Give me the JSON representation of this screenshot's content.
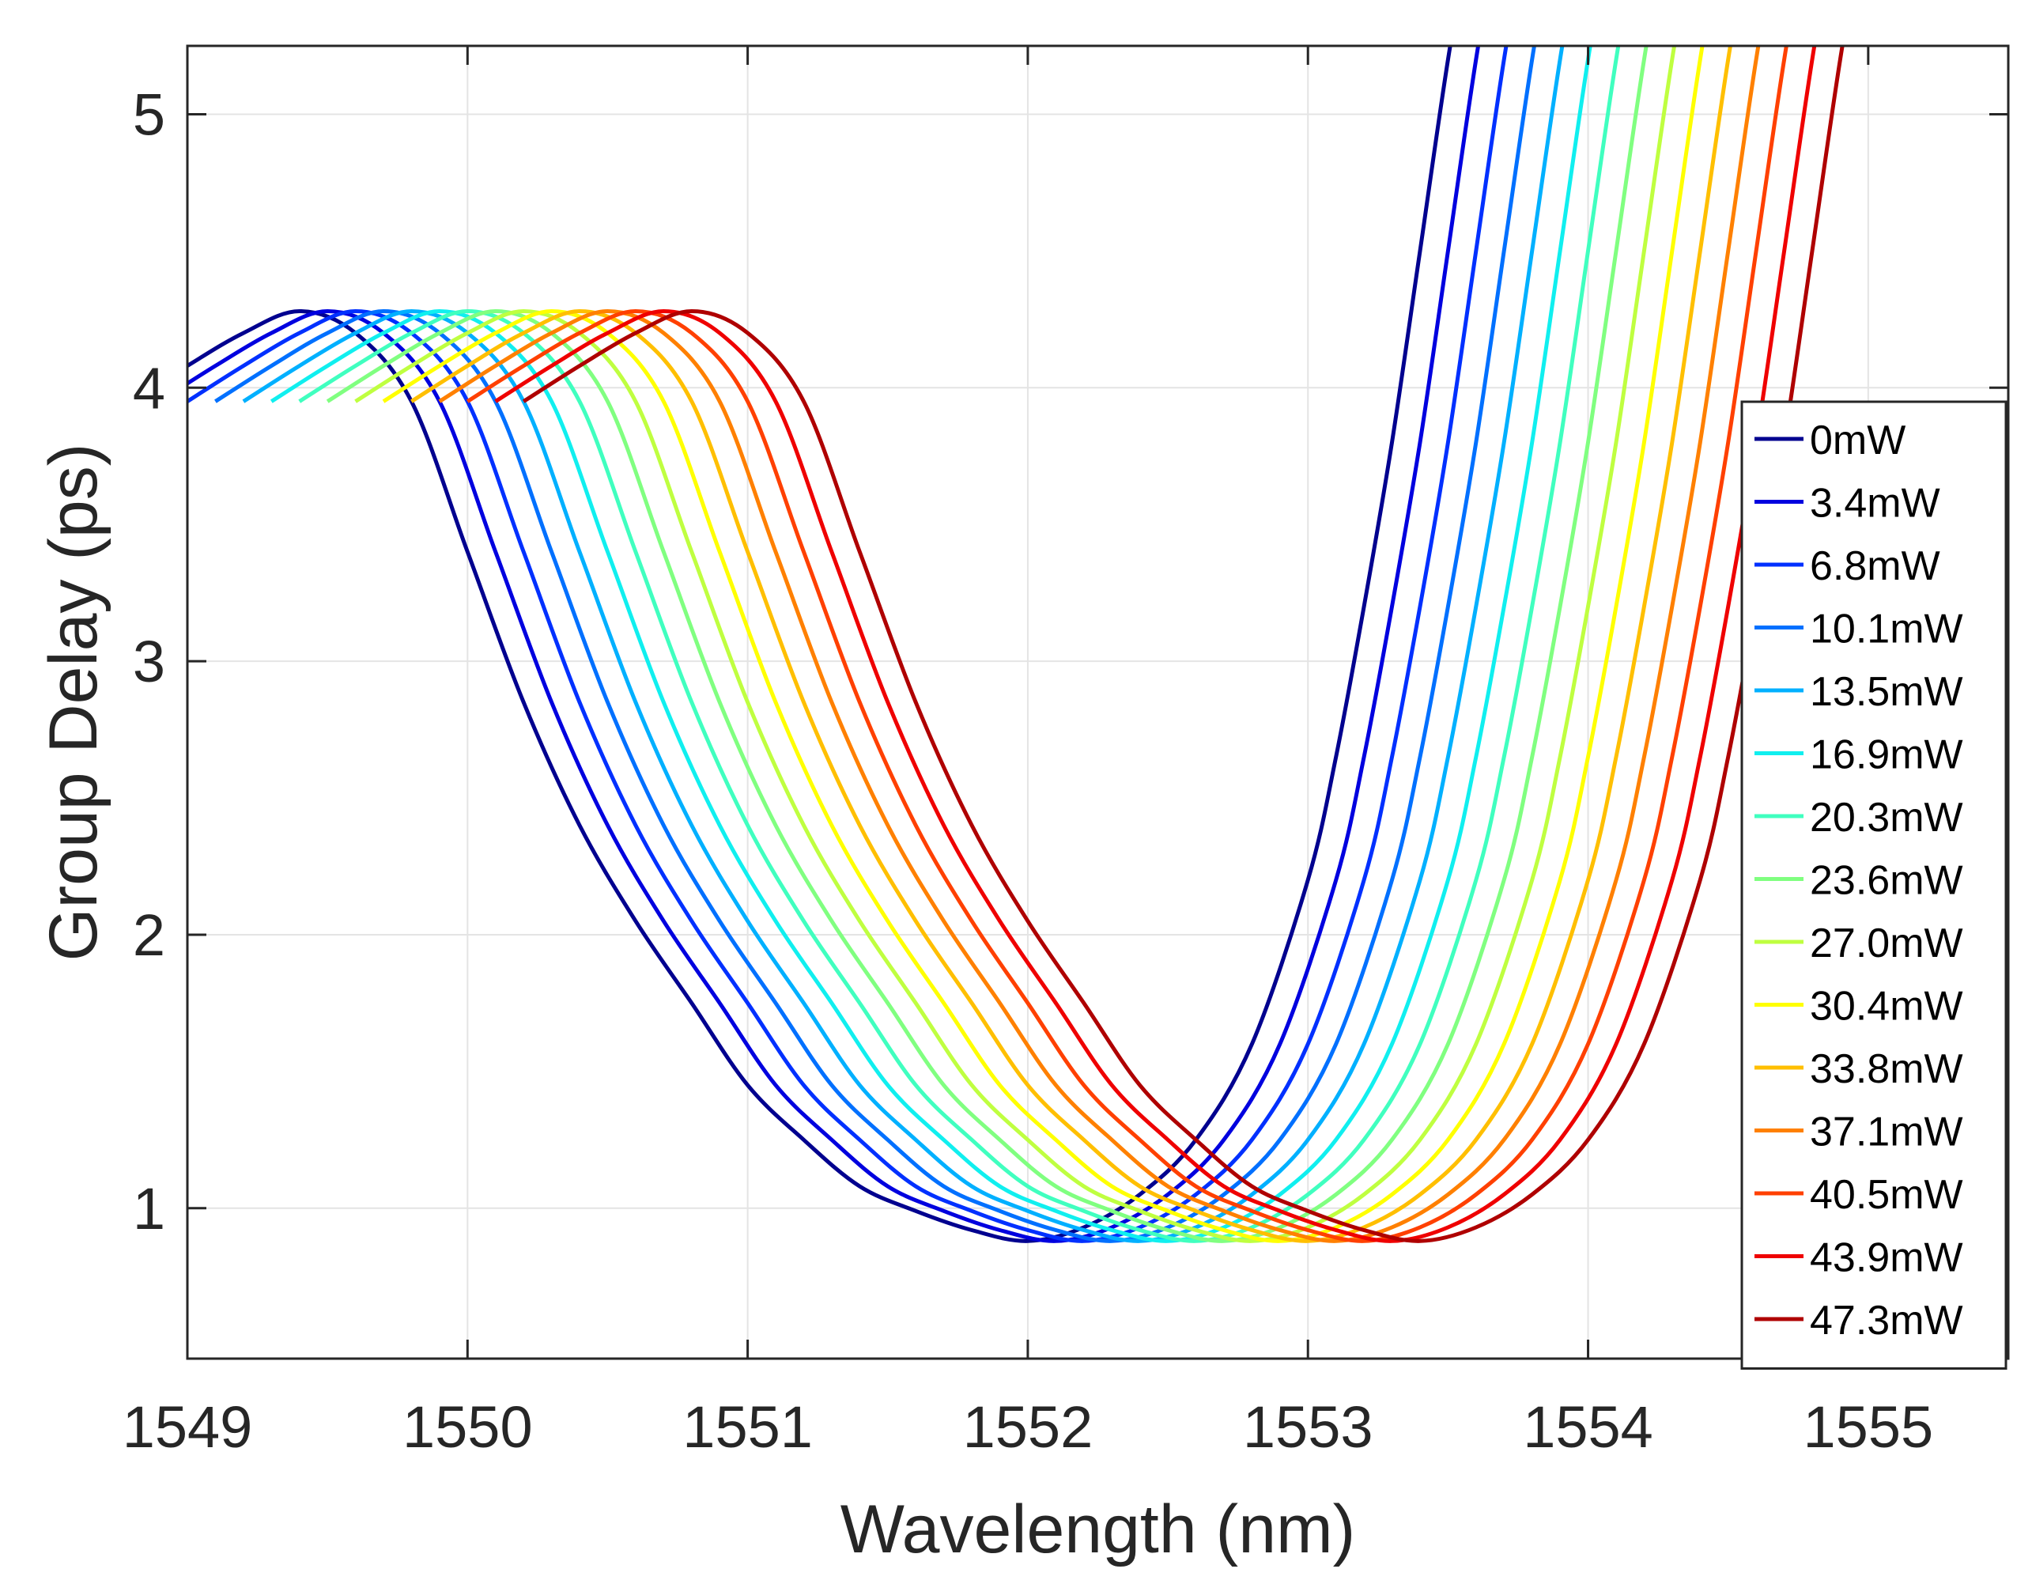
{
  "chart_data": {
    "type": "line",
    "title": "",
    "xlabel": "Wavelength (nm)",
    "ylabel": "Group Delay (ps)",
    "xlim": [
      1549,
      1555.5
    ],
    "ylim": [
      0.45,
      5.25
    ],
    "x_ticks": [
      1549,
      1550,
      1551,
      1552,
      1553,
      1554,
      1555
    ],
    "y_ticks": [
      1,
      2,
      3,
      4,
      5
    ],
    "grid": true,
    "legend_position": "right",
    "series": [
      {
        "name": "0mW",
        "color": "#00008F",
        "shift": 0.0
      },
      {
        "name": "3.4mW",
        "color": "#0000DF",
        "shift": 0.1
      },
      {
        "name": "6.8mW",
        "color": "#0030FF",
        "shift": 0.2
      },
      {
        "name": "10.1mW",
        "color": "#0070FF",
        "shift": 0.3
      },
      {
        "name": "13.5mW",
        "color": "#00B0FF",
        "shift": 0.4
      },
      {
        "name": "16.9mW",
        "color": "#10EFEF",
        "shift": 0.5
      },
      {
        "name": "20.3mW",
        "color": "#40FFBF",
        "shift": 0.6
      },
      {
        "name": "23.6mW",
        "color": "#80FF80",
        "shift": 0.7
      },
      {
        "name": "27.0mW",
        "color": "#BFFF40",
        "shift": 0.8
      },
      {
        "name": "30.4mW",
        "color": "#FFFF00",
        "shift": 0.9
      },
      {
        "name": "33.8mW",
        "color": "#FFBF00",
        "shift": 1.0
      },
      {
        "name": "37.1mW",
        "color": "#FF8000",
        "shift": 1.1
      },
      {
        "name": "40.5mW",
        "color": "#FF4000",
        "shift": 1.2
      },
      {
        "name": "43.9mW",
        "color": "#EF0000",
        "shift": 1.3
      },
      {
        "name": "47.3mW",
        "color": "#AF0000",
        "shift": 1.4
      }
    ],
    "base_curve": {
      "x": [
        1548.8,
        1549.0,
        1549.2,
        1549.4,
        1549.6,
        1549.8,
        1550.0,
        1550.2,
        1550.4,
        1550.6,
        1550.8,
        1551.0,
        1551.2,
        1551.4,
        1551.6,
        1551.8,
        1552.0,
        1552.2,
        1552.4,
        1552.6,
        1552.8,
        1553.0,
        1553.1,
        1553.2,
        1553.3,
        1553.4,
        1553.5,
        1553.6
      ],
      "y": [
        3.95,
        4.08,
        4.2,
        4.28,
        4.2,
        3.95,
        3.4,
        2.85,
        2.4,
        2.05,
        1.75,
        1.45,
        1.25,
        1.08,
        0.99,
        0.92,
        0.88,
        0.93,
        1.05,
        1.25,
        1.6,
        2.2,
        2.65,
        3.2,
        3.8,
        4.5,
        5.2,
        5.8
      ]
    }
  }
}
